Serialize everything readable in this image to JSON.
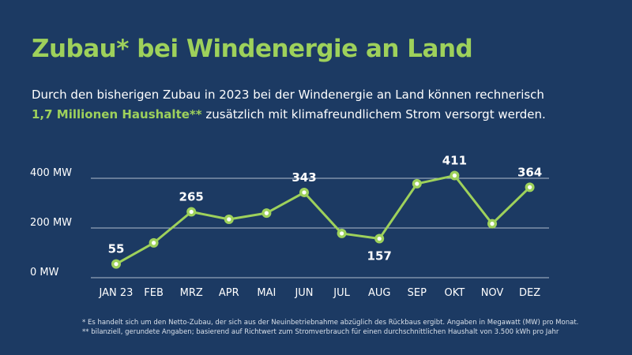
{
  "title": "Zubau* bei Windenergie an Land",
  "subtitle": {
    "line1": "Durch den bisherigen Zubau in 2023 bei der Windenergie an Land können rechnerisch",
    "highlight": "1,7 Millionen Haushalte**",
    "line2_rest": " zusätzlich mit klimafreundlichem Strom versorgt werden."
  },
  "footnotes": {
    "note1": "* Es handelt sich um den Netto-Zubau, der sich aus der Neuinbetriebnahme abzüglich des Rückbaus ergibt. Angaben in Megawatt (MW) pro Monat.",
    "note2": "** bilanziell, gerundete Angaben; basierend auf Richtwert zum Stromverbrauch für einen durchschnittlichen Haushalt von 3.500 kWh pro Jahr"
  },
  "colors": {
    "background": "#1c3a63",
    "accent": "#9ed15b",
    "text": "#ffffff",
    "grid": "#c9d3df"
  },
  "chart_data": {
    "type": "line",
    "title": "Zubau* bei Windenergie an Land",
    "xlabel": "",
    "ylabel": "",
    "categories": [
      "JAN 23",
      "FEB",
      "MRZ",
      "APR",
      "MAI",
      "JUN",
      "JUL",
      "AUG",
      "SEP",
      "OKT",
      "NOV",
      "DEZ"
    ],
    "values": [
      55,
      140,
      265,
      235,
      260,
      343,
      178,
      157,
      378,
      411,
      217,
      364
    ],
    "data_labels": [
      {
        "index": 0,
        "text": "55",
        "position": "above"
      },
      {
        "index": 2,
        "text": "265",
        "position": "above"
      },
      {
        "index": 5,
        "text": "343",
        "position": "above"
      },
      {
        "index": 7,
        "text": "157",
        "position": "below"
      },
      {
        "index": 9,
        "text": "411",
        "position": "above"
      },
      {
        "index": 11,
        "text": "364",
        "position": "above"
      }
    ],
    "yticks": [
      0,
      200,
      400
    ],
    "ytick_labels": [
      "0 MW",
      "200 MW",
      "400 MW"
    ],
    "ylim": [
      0,
      420
    ],
    "grid": true
  }
}
